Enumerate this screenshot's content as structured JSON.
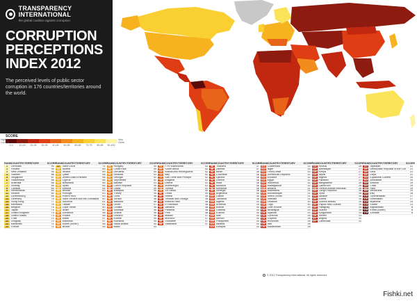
{
  "header": {
    "org": "TRANSPARENCY INTERNATIONAL",
    "tagline": "the global coalition against corruption",
    "title_lines": [
      "CORRUPTION",
      "PERCEPTIONS",
      "INDEX 2012"
    ],
    "subtitle": "The perceived levels of public sector corruption in 176 countries/territories around the world."
  },
  "legend": {
    "label": "SCORE",
    "left_end": "Highly Corrupt",
    "right_end": "Very Clean",
    "ticks": [
      "0-9",
      "10-19",
      "20-29",
      "30-39",
      "40-49",
      "50-59",
      "60-69",
      "70-79",
      "80-89",
      "90-100"
    ],
    "colors": [
      "#5a0a0a",
      "#8e1b10",
      "#c2270f",
      "#df3d14",
      "#e86418",
      "#f28c1d",
      "#f7b21f",
      "#f9cf31",
      "#fbe45a",
      "#fdf4a6"
    ]
  },
  "table_headers": {
    "rank": "RANK",
    "name": "COUNTRY/TERRITORY",
    "score": "SCORE"
  },
  "table_columns": [
    [
      [
        1,
        "Denmark",
        90
      ],
      [
        1,
        "Finland",
        90
      ],
      [
        1,
        "New Zealand",
        90
      ],
      [
        4,
        "Sweden",
        88
      ],
      [
        5,
        "Singapore",
        87
      ],
      [
        6,
        "Switzerland",
        86
      ],
      [
        7,
        "Australia",
        85
      ],
      [
        7,
        "Norway",
        85
      ],
      [
        9,
        "Canada",
        84
      ],
      [
        9,
        "Netherlands",
        84
      ],
      [
        11,
        "Iceland",
        82
      ],
      [
        12,
        "Luxembourg",
        80
      ],
      [
        13,
        "Germany",
        79
      ],
      [
        14,
        "Hong Kong",
        77
      ],
      [
        15,
        "Barbados",
        76
      ],
      [
        16,
        "Belgium",
        75
      ],
      [
        17,
        "Japan",
        74
      ],
      [
        17,
        "United Kingdom",
        74
      ],
      [
        19,
        "United States",
        73
      ],
      [
        20,
        "Chile",
        72
      ],
      [
        20,
        "Uruguay",
        72
      ],
      [
        22,
        "Bahamas",
        71
      ],
      [
        22,
        "France",
        71
      ]
    ],
    [
      [
        22,
        "Saint Lucia",
        71
      ],
      [
        25,
        "Austria",
        69
      ],
      [
        25,
        "Ireland",
        69
      ],
      [
        27,
        "Qatar",
        68
      ],
      [
        27,
        "United Arab Emirates",
        68
      ],
      [
        29,
        "Cyprus",
        66
      ],
      [
        30,
        "Botswana",
        65
      ],
      [
        30,
        "Spain",
        65
      ],
      [
        32,
        "Estonia",
        64
      ],
      [
        33,
        "Bhutan",
        63
      ],
      [
        33,
        "Portugal",
        63
      ],
      [
        33,
        "Puerto Rico",
        63
      ],
      [
        36,
        "Saint Vincent and the Grenadines",
        62
      ],
      [
        37,
        "Slovenia",
        61
      ],
      [
        37,
        "Taiwan",
        61
      ],
      [
        39,
        "Cape Verde",
        60
      ],
      [
        39,
        "Israel",
        60
      ],
      [
        41,
        "Dominica",
        58
      ],
      [
        41,
        "Poland",
        58
      ],
      [
        43,
        "Malta",
        57
      ],
      [
        43,
        "Mauritius",
        57
      ],
      [
        45,
        "Korea (South)",
        56
      ],
      [
        46,
        "Brunei",
        55
      ]
    ],
    [
      [
        46,
        "Hungary",
        55
      ],
      [
        48,
        "Costa Rica",
        54
      ],
      [
        48,
        "Lithuania",
        54
      ],
      [
        50,
        "Rwanda",
        53
      ],
      [
        51,
        "Georgia",
        52
      ],
      [
        51,
        "Seychelles",
        52
      ],
      [
        53,
        "Bahrain",
        51
      ],
      [
        54,
        "Czech Republic",
        49
      ],
      [
        54,
        "Latvia",
        49
      ],
      [
        54,
        "Malaysia",
        49
      ],
      [
        54,
        "Turkey",
        49
      ],
      [
        58,
        "Cuba",
        48
      ],
      [
        58,
        "Jordan",
        48
      ],
      [
        58,
        "Namibia",
        48
      ],
      [
        61,
        "Oman",
        47
      ],
      [
        62,
        "Croatia",
        46
      ],
      [
        62,
        "Slovakia",
        46
      ],
      [
        64,
        "Ghana",
        45
      ],
      [
        64,
        "Lesotho",
        45
      ],
      [
        66,
        "Kuwait",
        44
      ],
      [
        66,
        "Romania",
        44
      ],
      [
        66,
        "Saudi Arabia",
        44
      ],
      [
        69,
        "Brazil",
        43
      ]
    ],
    [
      [
        69,
        "FYR Macedonia",
        43
      ],
      [
        69,
        "South Africa",
        43
      ],
      [
        72,
        "Bosnia and Herzegovina",
        42
      ],
      [
        72,
        "Italy",
        42
      ],
      [
        72,
        "Sao Tome and Principe",
        42
      ],
      [
        75,
        "Bulgaria",
        41
      ],
      [
        75,
        "Liberia",
        41
      ],
      [
        75,
        "Montenegro",
        41
      ],
      [
        75,
        "Tunisia",
        41
      ],
      [
        79,
        "Sri Lanka",
        40
      ],
      [
        80,
        "China",
        39
      ],
      [
        80,
        "Serbia",
        39
      ],
      [
        80,
        "Trinidad and Tobago",
        39
      ],
      [
        83,
        "Burkina Faso",
        38
      ],
      [
        83,
        "El Salvador",
        38
      ],
      [
        83,
        "Jamaica",
        38
      ],
      [
        83,
        "Panama",
        38
      ],
      [
        83,
        "Peru",
        38
      ],
      [
        88,
        "Malawi",
        37
      ],
      [
        88,
        "Morocco",
        37
      ],
      [
        88,
        "Suriname",
        37
      ],
      [
        88,
        "Swaziland",
        37
      ]
    ],
    [
      [
        88,
        "Thailand",
        37
      ],
      [
        88,
        "Zambia",
        37
      ],
      [
        94,
        "Benin",
        36
      ],
      [
        94,
        "Colombia",
        36
      ],
      [
        94,
        "Djibouti",
        36
      ],
      [
        94,
        "Greece",
        36
      ],
      [
        94,
        "India",
        36
      ],
      [
        94,
        "Moldova",
        36
      ],
      [
        94,
        "Mongolia",
        36
      ],
      [
        94,
        "Senegal",
        36
      ],
      [
        102,
        "Argentina",
        35
      ],
      [
        102,
        "Gabon",
        35
      ],
      [
        102,
        "Tanzania",
        35
      ],
      [
        105,
        "Algeria",
        34
      ],
      [
        105,
        "Armenia",
        34
      ],
      [
        105,
        "Bolivia",
        34
      ],
      [
        105,
        "Gambia",
        34
      ],
      [
        105,
        "Kosovo",
        34
      ],
      [
        105,
        "Mali",
        34
      ],
      [
        105,
        "Mexico",
        34
      ],
      [
        105,
        "Philippines",
        34
      ],
      [
        113,
        "Albania",
        33
      ],
      [
        113,
        "Ethiopia",
        33
      ]
    ],
    [
      [
        113,
        "Guatemala",
        33
      ],
      [
        113,
        "Niger",
        33
      ],
      [
        113,
        "Timor-Leste",
        33
      ],
      [
        118,
        "Dominican Republic",
        32
      ],
      [
        118,
        "Ecuador",
        32
      ],
      [
        118,
        "Egypt",
        32
      ],
      [
        118,
        "Indonesia",
        32
      ],
      [
        118,
        "Madagascar",
        32
      ],
      [
        123,
        "Belarus",
        31
      ],
      [
        123,
        "Mauritania",
        31
      ],
      [
        123,
        "Mozambique",
        31
      ],
      [
        123,
        "Sierra Leone",
        31
      ],
      [
        123,
        "Vietnam",
        31
      ],
      [
        128,
        "Lebanon",
        30
      ],
      [
        128,
        "Togo",
        30
      ],
      [
        130,
        "Cote d'Ivoire",
        29
      ],
      [
        130,
        "Nicaragua",
        29
      ],
      [
        130,
        "Uganda",
        29
      ],
      [
        133,
        "Comoros",
        28
      ],
      [
        133,
        "Guyana",
        28
      ],
      [
        133,
        "Honduras",
        28
      ],
      [
        133,
        "Iran",
        28
      ],
      [
        133,
        "Kazakhstan",
        28
      ]
    ],
    [
      [
        133,
        "Russia",
        28
      ],
      [
        139,
        "Azerbaijan",
        27
      ],
      [
        139,
        "Kenya",
        27
      ],
      [
        139,
        "Nepal",
        27
      ],
      [
        139,
        "Nigeria",
        27
      ],
      [
        139,
        "Pakistan",
        27
      ],
      [
        144,
        "Bangladesh",
        26
      ],
      [
        144,
        "Cameroon",
        26
      ],
      [
        144,
        "Central African Republic",
        26
      ],
      [
        144,
        "Congo Republic",
        26
      ],
      [
        144,
        "Syria",
        26
      ],
      [
        144,
        "Ukraine",
        26
      ],
      [
        150,
        "Eritrea",
        25
      ],
      [
        150,
        "Guinea-Bissau",
        25
      ],
      [
        150,
        "Papua New Guinea",
        25
      ],
      [
        150,
        "Paraguay",
        25
      ],
      [
        154,
        "Guinea",
        24
      ],
      [
        154,
        "Kyrgyzstan",
        24
      ],
      [
        156,
        "Yemen",
        23
      ],
      [
        157,
        "Angola",
        22
      ],
      [
        157,
        "Cambodia",
        22
      ]
    ],
    [
      [
        157,
        "Tajikistan",
        22
      ],
      [
        160,
        "Democratic Republic of the Congo",
        21
      ],
      [
        160,
        "Laos",
        21
      ],
      [
        160,
        "Libya",
        21
      ],
      [
        163,
        "Equatorial Guinea",
        20
      ],
      [
        163,
        "Zimbabwe",
        20
      ],
      [
        165,
        "Burundi",
        19
      ],
      [
        165,
        "Chad",
        19
      ],
      [
        165,
        "Haiti",
        19
      ],
      [
        165,
        "Venezuela",
        19
      ],
      [
        169,
        "Iraq",
        18
      ],
      [
        170,
        "Turkmenistan",
        17
      ],
      [
        170,
        "Uzbekistan",
        17
      ],
      [
        172,
        "Myanmar",
        15
      ],
      [
        173,
        "Sudan",
        13
      ],
      [
        174,
        "Afghanistan",
        8
      ],
      [
        174,
        "Korea (North)",
        8
      ],
      [
        174,
        "Somalia",
        8
      ]
    ]
  ],
  "footer": "© 2012 Transparency International. All rights reserved.",
  "watermark": "Fishki.net"
}
